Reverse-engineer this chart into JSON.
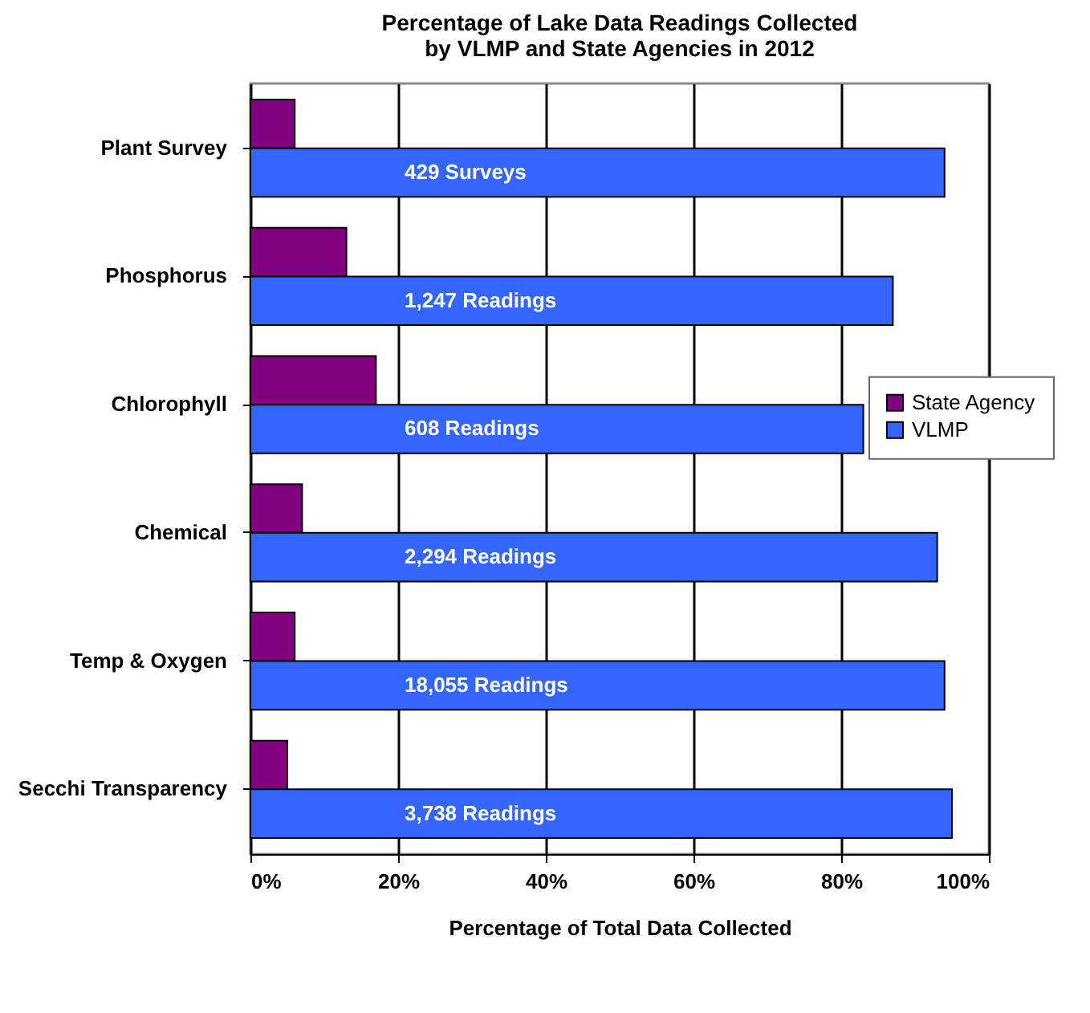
{
  "chart_data": {
    "type": "bar",
    "orientation": "horizontal",
    "title": "Percentage of Lake Data Readings Collected by VLMP and State Agencies in 2012",
    "xlabel": "Percentage of Total Data Collected",
    "categories": [
      "Plant Survey",
      "Phosphorus",
      "Chlorophyll",
      "Chemical",
      "Temp & Oxygen",
      "Secchi Transparency"
    ],
    "series": [
      {
        "name": "State Agency",
        "color": "#800080",
        "values": [
          6,
          13,
          17,
          7,
          6,
          5
        ]
      },
      {
        "name": "VLMP",
        "color": "#3366ff",
        "values": [
          94,
          87,
          83,
          93,
          94,
          95
        ]
      }
    ],
    "annotations": [
      "429 Surveys",
      "1,247 Readings",
      "608 Readings",
      "2,294 Readings",
      "18,055 Readings",
      "3,738 Readings"
    ],
    "xlim": [
      0,
      100
    ],
    "xticks": [
      {
        "value": 0,
        "label": "0%"
      },
      {
        "value": 20,
        "label": "20%"
      },
      {
        "value": 40,
        "label": "40%"
      },
      {
        "value": 60,
        "label": "60%"
      },
      {
        "value": 80,
        "label": "80%"
      },
      {
        "value": 100,
        "label": "100%"
      }
    ],
    "grid": "x",
    "legend": "right"
  }
}
